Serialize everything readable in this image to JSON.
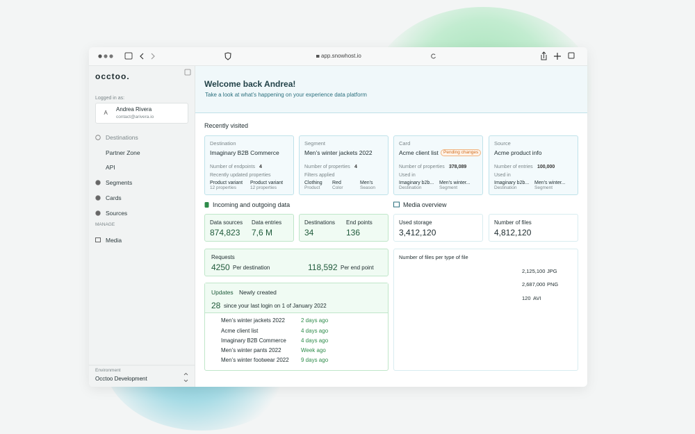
{
  "browser": {
    "url": "app.snowhost.io"
  },
  "sidebar": {
    "logo": "occtoo.",
    "logged_in_label": "Logged in as:",
    "user": {
      "initial": "A",
      "name": "Andrea Rivera",
      "email": "contact@arivera.io"
    },
    "nav": [
      "Destinations",
      "Partner Zone",
      "API",
      "Segments",
      "Cards",
      "Sources"
    ],
    "section": "MANAGE",
    "manage": [
      "Media"
    ],
    "environment": {
      "label": "Environment",
      "value": "Occtoo Development"
    }
  },
  "header": {
    "title": "Welcome back Andrea!",
    "subtitle": "Take a look at what’s happening on your experience data platform"
  },
  "recent": {
    "title": "Recently visited",
    "cards": [
      {
        "kind": "Destination",
        "name": "Imaginary B2B Commerce",
        "stat_label": "Number of endpoints",
        "stat_value": "4",
        "sub": "Recently updated properties",
        "items": [
          {
            "name": "Product variant",
            "sub": "12 properties"
          },
          {
            "name": "Product variant",
            "sub": "12 properties"
          }
        ]
      },
      {
        "kind": "Segment",
        "name": "Men’s winter jackets 2022",
        "stat_label": "Number of properties",
        "stat_value": "4",
        "sub": "Filters applied",
        "items": [
          {
            "name": "Clothing",
            "sub": "Product"
          },
          {
            "name": "Red",
            "sub": "Color"
          },
          {
            "name": "Men’s",
            "sub": "Season"
          }
        ]
      },
      {
        "kind": "Card",
        "name": "Acme client list",
        "badge": "Pending changes",
        "stat_label": "Number of properties",
        "stat_value": "378,089",
        "sub": "Used in",
        "items": [
          {
            "name": "Imaginary b2b...",
            "sub": "Destination"
          },
          {
            "name": "Men’s winter...",
            "sub": "Segment"
          }
        ]
      },
      {
        "kind": "Source",
        "name": "Acme product info",
        "stat_label": "Number of entries",
        "stat_value": "100,000",
        "sub": "Used in",
        "items": [
          {
            "name": "Imaginary b2b...",
            "sub": "Destination"
          },
          {
            "name": "Men’s winter...",
            "sub": "Segment"
          }
        ]
      }
    ]
  },
  "data_section": {
    "title": "Incoming and outgoing data",
    "boxes": [
      [
        {
          "label": "Data sources",
          "value": "874,823"
        },
        {
          "label": "Data entries",
          "value": "7,6 M"
        }
      ],
      [
        {
          "label": "Destinations",
          "value": "34"
        },
        {
          "label": "End points",
          "value": "136"
        }
      ]
    ],
    "requests": {
      "label": "Requests",
      "items": [
        {
          "value": "4250",
          "label": "Per destination"
        },
        {
          "value": "118,592",
          "label": "Per end point"
        }
      ]
    },
    "updates": {
      "tabs": [
        "Updates",
        "Newly created"
      ],
      "count": "28",
      "since": "since your last login on 1 of January 2022",
      "items": [
        {
          "name": "Men’s winter jackets 2022",
          "time": "2 days ago"
        },
        {
          "name": "Acme client list",
          "time": "4 days ago"
        },
        {
          "name": "Imaginary B2B Commerce",
          "time": "4 days ago"
        },
        {
          "name": "Men’s winter pants 2022",
          "time": "Week ago"
        },
        {
          "name": "Men’s winter footwear 2022",
          "time": "9 days ago"
        }
      ]
    }
  },
  "media": {
    "title": "Media overview",
    "boxes": [
      {
        "label": "Used storage",
        "value": "3,412,120"
      },
      {
        "label": "Number of files",
        "value": "4,812,120"
      }
    ]
  },
  "chart_data": {
    "type": "pie",
    "title": "Number of files per type of file",
    "categories": [
      "JPG",
      "PNG",
      "AVI"
    ],
    "values": [
      2125100,
      2687000,
      120
    ],
    "value_labels": [
      "2,125,100",
      "2,687,000",
      "120"
    ],
    "colors": [
      "#57b3c7",
      "#a9dce5",
      "#ffffff"
    ]
  }
}
